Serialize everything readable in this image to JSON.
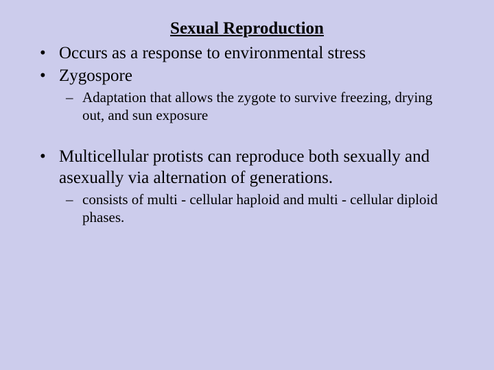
{
  "background_color": "#ccccec",
  "text_color": "#000000",
  "font_family": "Times New Roman",
  "title": {
    "text": "Sexual Reproduction",
    "fontsize": 25,
    "bold": true,
    "underline": true,
    "align": "center"
  },
  "bullets": [
    {
      "level": 1,
      "marker": "•",
      "text": "Occurs as a response to environmental stress",
      "fontsize": 25
    },
    {
      "level": 1,
      "marker": "•",
      "text": "Zygospore",
      "fontsize": 25
    },
    {
      "level": 2,
      "marker": "–",
      "text": "Adaptation that allows the zygote to survive freezing, drying out, and sun exposure",
      "fontsize": 21
    },
    {
      "level": 1,
      "marker": "•",
      "text": "Multicellular protists can reproduce both sexually and asexually via alternation of generations.",
      "fontsize": 25,
      "gap_before": true
    },
    {
      "level": 2,
      "marker": "–",
      "text": "consists of multi - cellular haploid and multi - cellular diploid phases.",
      "fontsize": 21
    }
  ]
}
